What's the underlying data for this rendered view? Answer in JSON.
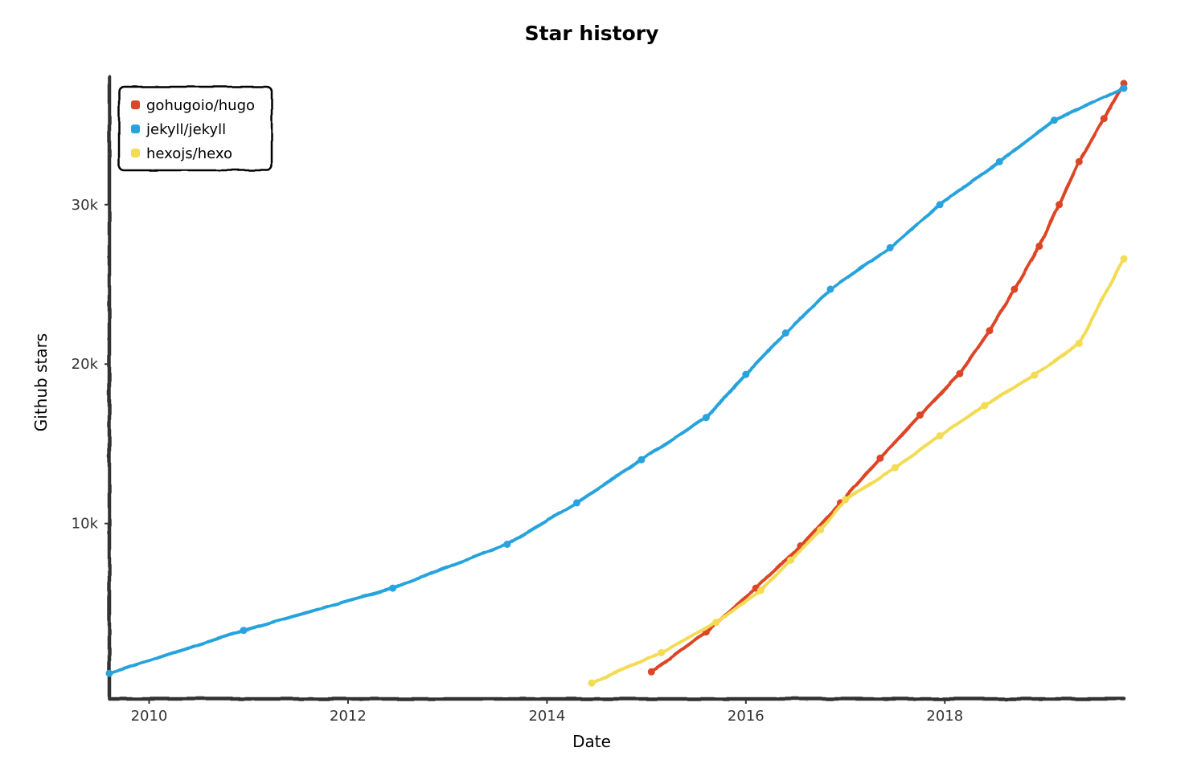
{
  "chart_data": {
    "type": "line",
    "title": "Star history",
    "xlabel": "Date",
    "ylabel": "Github stars",
    "x_ticks": [
      "2010",
      "2012",
      "2014",
      "2016",
      "2018"
    ],
    "y_ticks": [
      "10k",
      "20k",
      "30k"
    ],
    "legend_position": "top-left",
    "grid": false,
    "series": [
      {
        "name": "gohugoio/hugo",
        "color": "#dd4528",
        "points": [
          [
            2015.05,
            700
          ],
          [
            2015.6,
            3200
          ],
          [
            2016.1,
            5950
          ],
          [
            2016.55,
            8600
          ],
          [
            2016.95,
            11300
          ],
          [
            2017.35,
            14100
          ],
          [
            2017.75,
            16800
          ],
          [
            2018.15,
            19400
          ],
          [
            2018.45,
            22100
          ],
          [
            2018.7,
            24700
          ],
          [
            2018.95,
            27400
          ],
          [
            2019.15,
            30000
          ],
          [
            2019.35,
            32700
          ],
          [
            2019.6,
            35400
          ],
          [
            2019.8,
            37600
          ]
        ]
      },
      {
        "name": "jekyll/jekyll",
        "color": "#28a3dd",
        "points": [
          [
            2009.6,
            600
          ],
          [
            2010.95,
            3300
          ],
          [
            2012.45,
            5950
          ],
          [
            2013.6,
            8700
          ],
          [
            2014.3,
            11300
          ],
          [
            2014.95,
            14000
          ],
          [
            2015.6,
            16650
          ],
          [
            2016.0,
            19350
          ],
          [
            2016.4,
            21950
          ],
          [
            2016.85,
            24700
          ],
          [
            2017.45,
            27300
          ],
          [
            2017.95,
            30000
          ],
          [
            2018.55,
            32700
          ],
          [
            2019.1,
            35300
          ],
          [
            2019.8,
            37300
          ]
        ]
      },
      {
        "name": "hexojs/hexo",
        "color": "#f3db52",
        "points": [
          [
            2014.45,
            0
          ],
          [
            2015.15,
            1900
          ],
          [
            2015.7,
            3800
          ],
          [
            2016.15,
            5800
          ],
          [
            2016.45,
            7700
          ],
          [
            2016.75,
            9600
          ],
          [
            2017.0,
            11500
          ],
          [
            2017.5,
            13500
          ],
          [
            2017.95,
            15500
          ],
          [
            2018.4,
            17400
          ],
          [
            2018.9,
            19300
          ],
          [
            2019.35,
            21300
          ],
          [
            2019.8,
            26600
          ]
        ]
      }
    ]
  }
}
